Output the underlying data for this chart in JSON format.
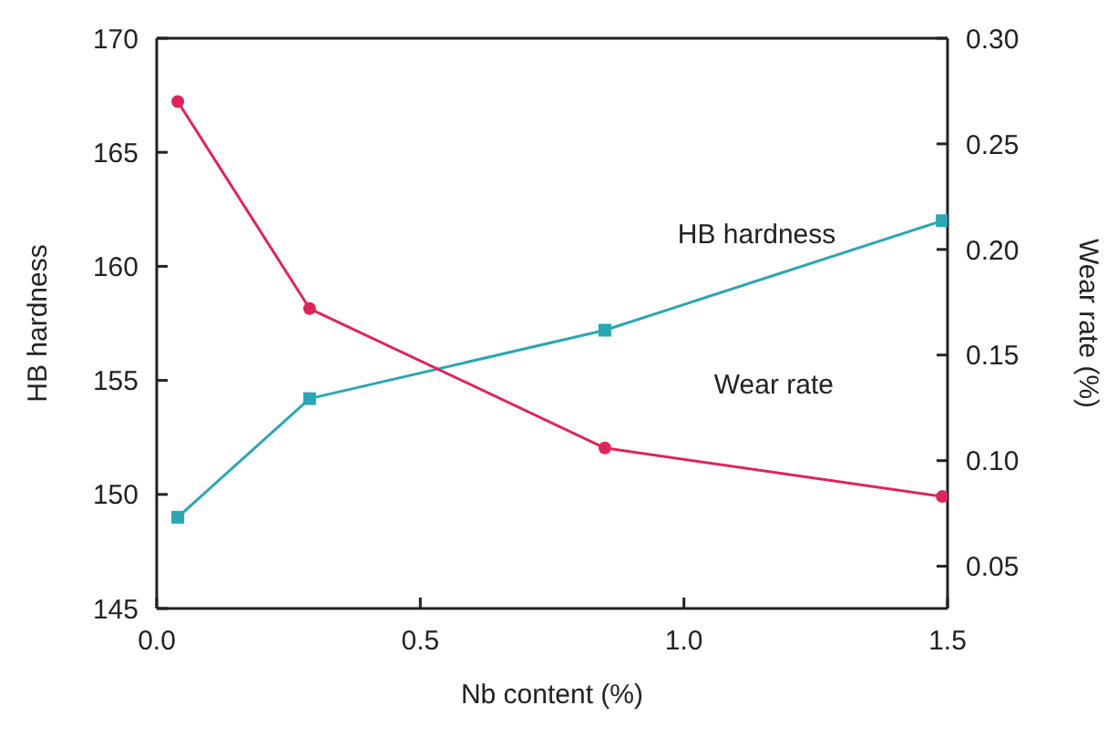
{
  "chart_data": {
    "type": "line",
    "xlabel": "Nb content (%)",
    "ylabel": "HB hardness",
    "y2label": "Wear rate (%)",
    "xlim": [
      0,
      1.5
    ],
    "xticks": [
      {
        "value": 0,
        "label": "0.0"
      },
      {
        "value": 0.5,
        "label": "0.5"
      },
      {
        "value": 1,
        "label": "1.0"
      },
      {
        "value": 1.5,
        "label": "1.5"
      }
    ],
    "ylim": [
      145,
      170
    ],
    "yticks": [
      145,
      150,
      155,
      160,
      165,
      170
    ],
    "y2lim": [
      0.03,
      0.3
    ],
    "y2ticks": [
      0.05,
      {
        "value": 0.1,
        "label": "0.10"
      },
      0.15,
      {
        "value": 0.2,
        "label": "0.20"
      },
      0.25,
      {
        "value": 0.3,
        "label": "0.30"
      }
    ],
    "x": [
      0.04,
      0.29,
      0.85,
      1.49
    ],
    "series": [
      {
        "name": "HB hardness",
        "color": "#2aa6b4",
        "marker": "square",
        "values": [
          149,
          154.2,
          157.2,
          162
        ]
      },
      {
        "name": "Wear rate",
        "color": "#e0245a",
        "marker": "circle",
        "axis": "y2",
        "values": [
          0.27,
          0.172,
          0.106,
          0.083
        ]
      }
    ],
    "grid": false,
    "legend": false
  }
}
